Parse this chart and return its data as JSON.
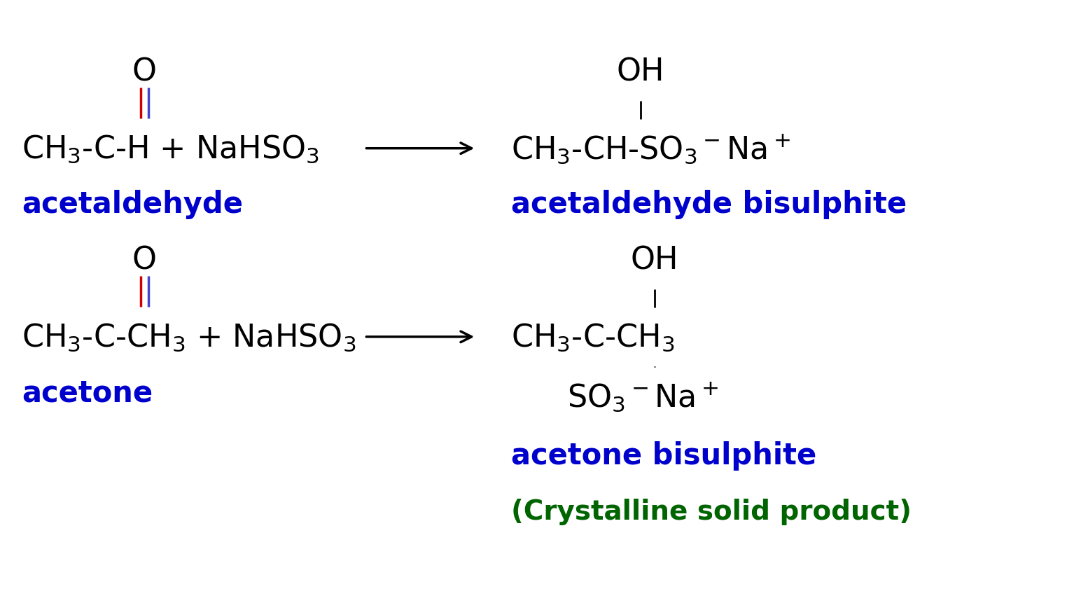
{
  "bg_color": "#ffffff",
  "black": "#000000",
  "blue": "#0000cc",
  "green": "#006400",
  "double_bond_color1": "#cc0000",
  "double_bond_color2": "#4444cc",
  "fig_width": 15.54,
  "fig_height": 8.62,
  "dpi": 100,
  "fs_formula": 32,
  "fs_label": 30,
  "fs_crystal": 28,
  "xlim": [
    0,
    15.54
  ],
  "ylim": [
    0,
    8.62
  ]
}
